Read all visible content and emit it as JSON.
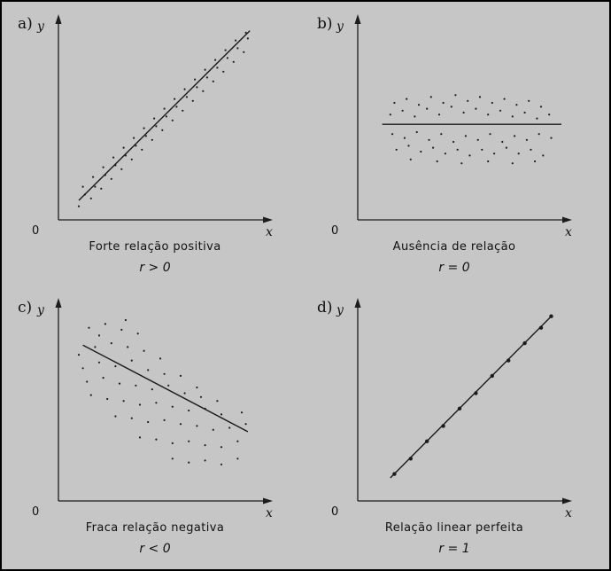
{
  "chart_data": [
    {
      "type": "scatter",
      "panel_label": "a)",
      "xlabel": "x",
      "ylabel": "y",
      "origin_label": "0",
      "title": "Forte relação positiva",
      "coefficient": "r > 0",
      "xlim": [
        0,
        10
      ],
      "ylim": [
        0,
        10
      ],
      "trend": "positive",
      "fit_line": {
        "x": [
          1,
          9.4
        ],
        "y": [
          1.0,
          9.7
        ]
      },
      "points": [
        [
          1.0,
          0.7
        ],
        [
          1.3,
          1.3
        ],
        [
          1.6,
          1.1
        ],
        [
          1.8,
          1.7
        ],
        [
          2.1,
          1.6
        ],
        [
          2.3,
          2.3
        ],
        [
          2.6,
          2.1
        ],
        [
          2.8,
          2.8
        ],
        [
          3.1,
          2.6
        ],
        [
          3.3,
          3.3
        ],
        [
          3.6,
          3.1
        ],
        [
          3.8,
          3.8
        ],
        [
          4.1,
          3.6
        ],
        [
          4.3,
          4.3
        ],
        [
          4.6,
          4.1
        ],
        [
          4.8,
          4.8
        ],
        [
          5.1,
          4.6
        ],
        [
          5.3,
          5.3
        ],
        [
          5.6,
          5.1
        ],
        [
          5.8,
          5.8
        ],
        [
          6.1,
          5.6
        ],
        [
          6.3,
          6.3
        ],
        [
          6.6,
          6.1
        ],
        [
          6.8,
          6.8
        ],
        [
          7.1,
          6.6
        ],
        [
          7.3,
          7.3
        ],
        [
          7.6,
          7.1
        ],
        [
          7.8,
          7.8
        ],
        [
          8.1,
          7.6
        ],
        [
          8.3,
          8.3
        ],
        [
          8.6,
          8.1
        ],
        [
          8.8,
          8.8
        ],
        [
          9.1,
          8.6
        ],
        [
          9.3,
          9.3
        ],
        [
          1.2,
          1.7
        ],
        [
          1.7,
          2.2
        ],
        [
          2.2,
          2.7
        ],
        [
          2.7,
          3.2
        ],
        [
          3.2,
          3.7
        ],
        [
          3.7,
          4.2
        ],
        [
          4.2,
          4.7
        ],
        [
          4.7,
          5.2
        ],
        [
          5.2,
          5.7
        ],
        [
          5.7,
          6.2
        ],
        [
          6.2,
          6.7
        ],
        [
          6.7,
          7.2
        ],
        [
          7.2,
          7.7
        ],
        [
          7.7,
          8.2
        ],
        [
          8.2,
          8.7
        ],
        [
          8.7,
          9.2
        ],
        [
          9.2,
          9.6
        ]
      ]
    },
    {
      "type": "scatter",
      "panel_label": "b)",
      "xlabel": "x",
      "ylabel": "y",
      "origin_label": "0",
      "title": "Ausência de relação",
      "coefficient": "r = 0",
      "xlim": [
        0,
        10
      ],
      "ylim": [
        0,
        10
      ],
      "trend": "none",
      "fit_line": {
        "x": [
          1.2,
          10
        ],
        "y": [
          4.9,
          4.9
        ]
      },
      "points": [
        [
          1.8,
          6.0
        ],
        [
          2.4,
          6.2
        ],
        [
          3.0,
          5.9
        ],
        [
          3.6,
          6.3
        ],
        [
          4.2,
          6.0
        ],
        [
          4.8,
          6.4
        ],
        [
          5.4,
          6.1
        ],
        [
          6.0,
          6.3
        ],
        [
          6.6,
          6.0
        ],
        [
          7.2,
          6.2
        ],
        [
          7.8,
          5.9
        ],
        [
          8.4,
          6.1
        ],
        [
          9.0,
          5.8
        ],
        [
          1.6,
          5.4
        ],
        [
          2.2,
          5.6
        ],
        [
          2.8,
          5.3
        ],
        [
          3.4,
          5.7
        ],
        [
          4.0,
          5.4
        ],
        [
          4.6,
          5.8
        ],
        [
          5.2,
          5.5
        ],
        [
          5.8,
          5.7
        ],
        [
          6.4,
          5.4
        ],
        [
          7.0,
          5.6
        ],
        [
          7.6,
          5.3
        ],
        [
          8.2,
          5.5
        ],
        [
          8.8,
          5.2
        ],
        [
          9.4,
          5.4
        ],
        [
          1.7,
          4.4
        ],
        [
          2.3,
          4.2
        ],
        [
          2.9,
          4.5
        ],
        [
          3.5,
          4.1
        ],
        [
          4.1,
          4.4
        ],
        [
          4.7,
          4.0
        ],
        [
          5.3,
          4.3
        ],
        [
          5.9,
          4.1
        ],
        [
          6.5,
          4.4
        ],
        [
          7.1,
          4.0
        ],
        [
          7.7,
          4.3
        ],
        [
          8.3,
          4.1
        ],
        [
          8.9,
          4.4
        ],
        [
          9.5,
          4.2
        ],
        [
          1.9,
          3.6
        ],
        [
          2.5,
          3.8
        ],
        [
          3.1,
          3.5
        ],
        [
          3.7,
          3.7
        ],
        [
          4.3,
          3.4
        ],
        [
          4.9,
          3.6
        ],
        [
          5.5,
          3.3
        ],
        [
          6.1,
          3.6
        ],
        [
          6.7,
          3.4
        ],
        [
          7.3,
          3.7
        ],
        [
          7.9,
          3.4
        ],
        [
          8.5,
          3.6
        ],
        [
          9.1,
          3.3
        ],
        [
          2.6,
          3.1
        ],
        [
          3.9,
          3.0
        ],
        [
          5.1,
          2.9
        ],
        [
          6.4,
          3.0
        ],
        [
          7.6,
          2.9
        ],
        [
          8.7,
          3.0
        ]
      ]
    },
    {
      "type": "scatter",
      "panel_label": "c)",
      "xlabel": "x",
      "ylabel": "y",
      "origin_label": "0",
      "title": "Fraca relação negativa",
      "coefficient": "r < 0",
      "xlim": [
        0,
        10
      ],
      "ylim": [
        0,
        10
      ],
      "trend": "negative",
      "fit_line": {
        "x": [
          1.2,
          9.3
        ],
        "y": [
          8.1,
          3.6
        ]
      },
      "points": [
        [
          1.5,
          9.0
        ],
        [
          2.3,
          9.2
        ],
        [
          3.1,
          8.9
        ],
        [
          3.9,
          8.7
        ],
        [
          1.0,
          7.6
        ],
        [
          1.8,
          8.0
        ],
        [
          2.6,
          8.2
        ],
        [
          3.4,
          8.0
        ],
        [
          4.2,
          7.8
        ],
        [
          5.0,
          7.4
        ],
        [
          1.2,
          6.9
        ],
        [
          2.0,
          7.2
        ],
        [
          2.8,
          7.0
        ],
        [
          3.6,
          7.3
        ],
        [
          4.4,
          6.8
        ],
        [
          5.2,
          6.6
        ],
        [
          6.0,
          6.5
        ],
        [
          1.4,
          6.2
        ],
        [
          2.2,
          6.4
        ],
        [
          3.0,
          6.1
        ],
        [
          3.8,
          6.0
        ],
        [
          4.6,
          5.8
        ],
        [
          5.4,
          6.0
        ],
        [
          6.2,
          5.6
        ],
        [
          7.0,
          5.4
        ],
        [
          1.6,
          5.5
        ],
        [
          2.4,
          5.3
        ],
        [
          3.2,
          5.2
        ],
        [
          4.0,
          5.0
        ],
        [
          4.8,
          5.1
        ],
        [
          5.6,
          4.9
        ],
        [
          6.4,
          4.7
        ],
        [
          7.2,
          4.8
        ],
        [
          8.0,
          4.5
        ],
        [
          2.8,
          4.4
        ],
        [
          3.6,
          4.3
        ],
        [
          4.4,
          4.1
        ],
        [
          5.2,
          4.2
        ],
        [
          6.0,
          4.0
        ],
        [
          6.8,
          3.9
        ],
        [
          7.6,
          3.7
        ],
        [
          8.4,
          3.8
        ],
        [
          9.2,
          4.0
        ],
        [
          4.0,
          3.3
        ],
        [
          4.8,
          3.2
        ],
        [
          5.6,
          3.0
        ],
        [
          6.4,
          3.1
        ],
        [
          7.2,
          2.9
        ],
        [
          8.0,
          2.8
        ],
        [
          8.8,
          3.1
        ],
        [
          5.6,
          2.2
        ],
        [
          6.4,
          2.0
        ],
        [
          7.2,
          2.1
        ],
        [
          8.0,
          1.9
        ],
        [
          8.8,
          2.2
        ],
        [
          2.0,
          8.6
        ],
        [
          3.3,
          9.4
        ],
        [
          6.8,
          5.9
        ],
        [
          7.8,
          5.2
        ],
        [
          9.0,
          4.6
        ]
      ]
    },
    {
      "type": "scatter",
      "panel_label": "d)",
      "xlabel": "x",
      "ylabel": "y",
      "origin_label": "0",
      "title": "Relação linear perfeita",
      "coefficient": "r = 1",
      "xlim": [
        0,
        10
      ],
      "ylim": [
        0,
        10
      ],
      "trend": "perfect",
      "fit_line": {
        "x": [
          1.6,
          9.5
        ],
        "y": [
          1.2,
          9.6
        ]
      },
      "points": [
        [
          1.8,
          1.4
        ],
        [
          2.6,
          2.2
        ],
        [
          3.4,
          3.1
        ],
        [
          4.2,
          3.9
        ],
        [
          5.0,
          4.8
        ],
        [
          5.8,
          5.6
        ],
        [
          6.6,
          6.5
        ],
        [
          7.4,
          7.3
        ],
        [
          8.2,
          8.2
        ],
        [
          9.0,
          9.0
        ],
        [
          9.5,
          9.6
        ]
      ]
    }
  ]
}
